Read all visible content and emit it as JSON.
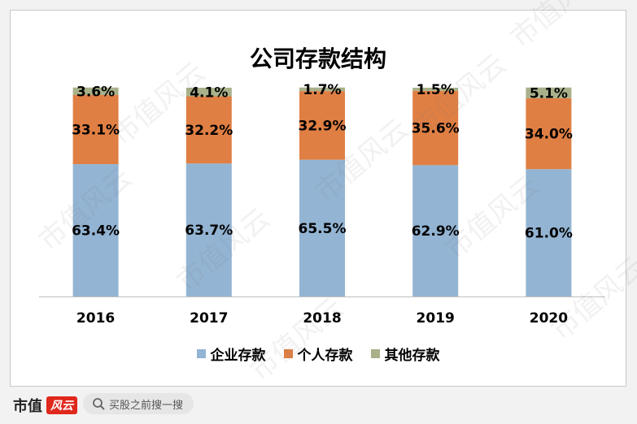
{
  "chart_data": {
    "type": "bar",
    "stacked": true,
    "title": "公司存款结构",
    "categories": [
      "2016",
      "2017",
      "2018",
      "2019",
      "2020"
    ],
    "series": [
      {
        "name": "企业存款",
        "color": "#93b4d3",
        "values": [
          63.4,
          63.7,
          65.5,
          62.9,
          61.0
        ],
        "labels": [
          "63.4%",
          "63.7%",
          "65.5%",
          "62.9%",
          "61.0%"
        ]
      },
      {
        "name": "个人存款",
        "color": "#e07f44",
        "values": [
          33.1,
          32.2,
          32.9,
          35.6,
          34.0
        ],
        "labels": [
          "33.1%",
          "32.2%",
          "32.9%",
          "35.6%",
          "34.0%"
        ]
      },
      {
        "name": "其他存款",
        "color": "#a8b18a",
        "values": [
          3.6,
          4.1,
          1.7,
          1.5,
          5.1
        ],
        "labels": [
          "3.6%",
          "4.1%",
          "1.7%",
          "1.5%",
          "5.1%"
        ]
      }
    ],
    "ylim": [
      0,
      100
    ],
    "unit": "%",
    "grid": false,
    "legend": "bottom"
  },
  "watermark": "市值风云",
  "footer": {
    "brand": "市值",
    "brand_logo": "风云",
    "search_placeholder": "买股之前搜一搜",
    "search_icon": "search-icon"
  }
}
